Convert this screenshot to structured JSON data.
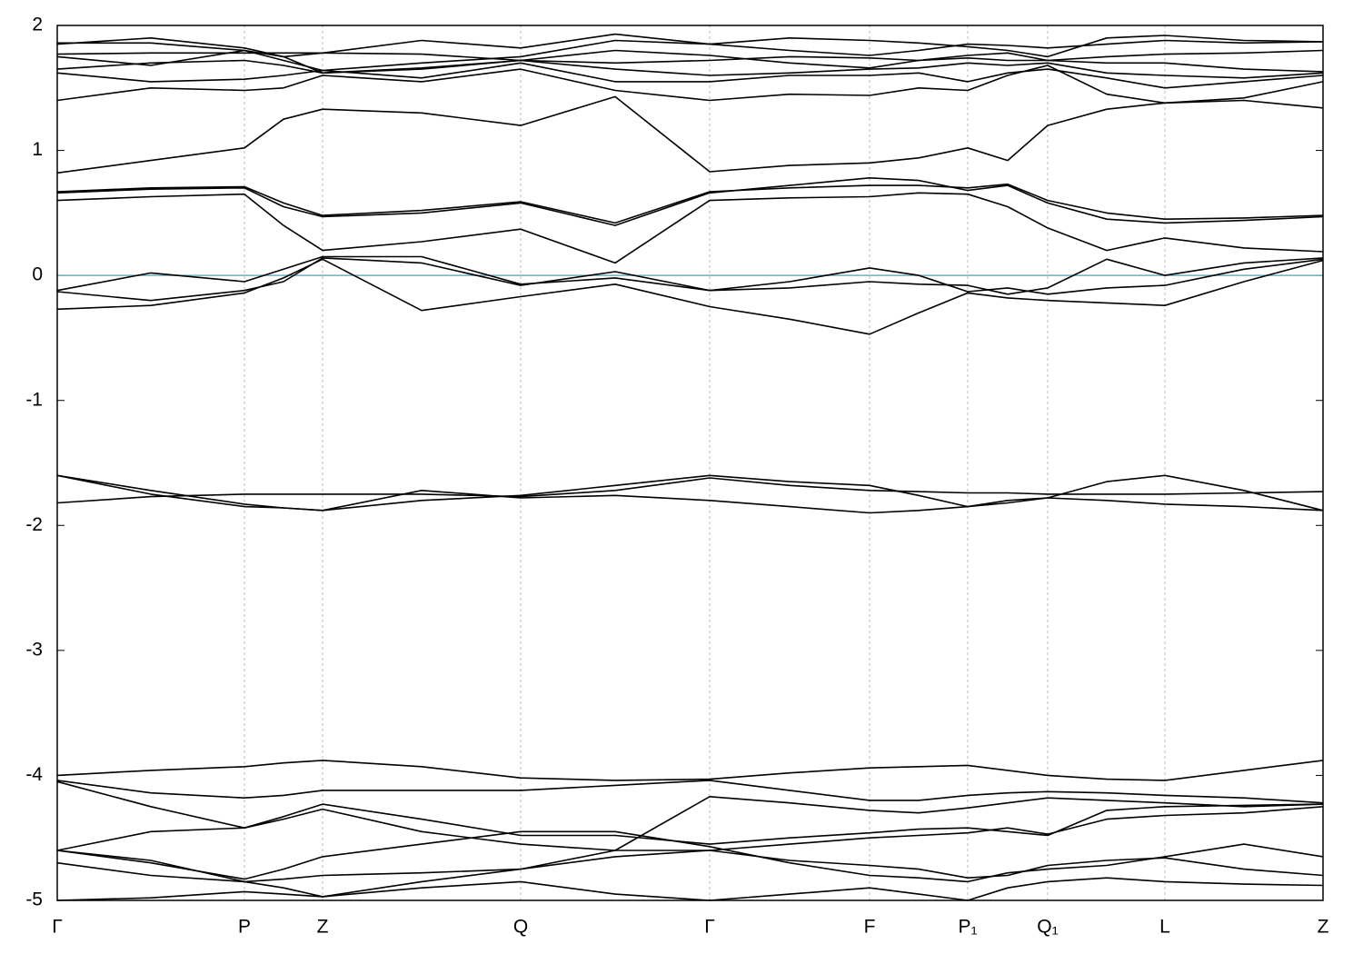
{
  "chart_data": {
    "type": "line",
    "xlim": [
      0,
      1393
    ],
    "ylim": [
      -5,
      2
    ],
    "yticks": [
      2,
      1,
      0,
      -1,
      -2,
      -3,
      -4,
      -5
    ],
    "xticks": [
      {
        "value": 0,
        "label": "Γ"
      },
      {
        "value": 206,
        "label": "P"
      },
      {
        "value": 292,
        "label": "Z"
      },
      {
        "value": 510,
        "label": "Q"
      },
      {
        "value": 718,
        "label": "Γ"
      },
      {
        "value": 894,
        "label": "F"
      },
      {
        "value": 1002,
        "label": "P₁"
      },
      {
        "value": 1090,
        "label": "Q₁"
      },
      {
        "value": 1219,
        "label": "L"
      },
      {
        "value": 1393,
        "label": "Z"
      }
    ],
    "xgrid": true,
    "grid_color": "#bbbbbb",
    "reference_line": {
      "value": 0,
      "color": "#5fb4c8"
    },
    "x": [
      0,
      103,
      206,
      249,
      292,
      401,
      510,
      614,
      718,
      806,
      894,
      948,
      1002,
      1046,
      1090,
      1155,
      1219,
      1306,
      1393
    ],
    "series": [
      {
        "color": "#000000",
        "values": [
          -4.0,
          -3.96,
          -3.93,
          -3.9,
          -3.88,
          -3.93,
          -4.02,
          -4.04,
          -4.03,
          -3.98,
          -3.94,
          -3.93,
          -3.92,
          -3.96,
          -4.0,
          -4.03,
          -4.04,
          -3.96,
          -3.88
        ]
      },
      {
        "color": "#000000",
        "values": [
          -4.04,
          -4.14,
          -4.18,
          -4.16,
          -4.12,
          -4.12,
          -4.12,
          -4.08,
          -4.04,
          -4.12,
          -4.2,
          -4.2,
          -4.16,
          -4.14,
          -4.13,
          -4.14,
          -4.16,
          -4.18,
          -4.22
        ]
      },
      {
        "color": "#000000",
        "values": [
          -4.05,
          -4.25,
          -4.42,
          -4.33,
          -4.23,
          -4.35,
          -4.48,
          -4.48,
          -4.55,
          -4.5,
          -4.46,
          -4.43,
          -4.42,
          -4.45,
          -4.48,
          -4.28,
          -4.25,
          -4.24,
          -4.23
        ]
      },
      {
        "color": "#000000",
        "values": [
          -4.6,
          -4.45,
          -4.42,
          -4.35,
          -4.27,
          -4.45,
          -4.55,
          -4.6,
          -4.6,
          -4.55,
          -4.5,
          -4.48,
          -4.46,
          -4.42,
          -4.47,
          -4.35,
          -4.32,
          -4.3,
          -4.25
        ]
      },
      {
        "color": "#000000",
        "values": [
          -4.6,
          -4.7,
          -4.83,
          -4.75,
          -4.65,
          -4.55,
          -4.45,
          -4.45,
          -4.57,
          -4.7,
          -4.8,
          -4.82,
          -4.85,
          -4.78,
          -4.75,
          -4.72,
          -4.65,
          -4.55,
          -4.65
        ]
      },
      {
        "color": "#000000",
        "values": [
          -4.7,
          -4.8,
          -4.85,
          -4.83,
          -4.8,
          -4.78,
          -4.75,
          -4.65,
          -4.6,
          -4.68,
          -4.72,
          -4.75,
          -4.82,
          -4.8,
          -4.72,
          -4.68,
          -4.66,
          -4.75,
          -4.8
        ]
      },
      {
        "color": "#000000",
        "values": [
          -5.0,
          -4.98,
          -4.93,
          -4.95,
          -4.97,
          -4.9,
          -4.85,
          -4.95,
          -5.0,
          -4.95,
          -4.9,
          -4.95,
          -5.0,
          -4.9,
          -4.85,
          -4.82,
          -4.85,
          -4.87,
          -4.88
        ]
      },
      {
        "color": "#000000",
        "values": [
          -4.6,
          -4.68,
          -4.85,
          -4.9,
          -4.97,
          -4.85,
          -4.75,
          -4.6,
          -4.17,
          -4.22,
          -4.28,
          -4.3,
          -4.26,
          -4.22,
          -4.18,
          -4.2,
          -4.22,
          -4.25,
          -4.23
        ]
      },
      {
        "color": "#000000",
        "values": [
          -1.6,
          -1.72,
          -1.83,
          -1.86,
          -1.88,
          -1.8,
          -1.76,
          -1.68,
          -1.6,
          -1.65,
          -1.68,
          -1.76,
          -1.85,
          -1.82,
          -1.78,
          -1.65,
          -1.6,
          -1.72,
          -1.88
        ]
      },
      {
        "color": "#000000",
        "values": [
          -1.6,
          -1.75,
          -1.85,
          -1.86,
          -1.88,
          -1.72,
          -1.78,
          -1.76,
          -1.8,
          -1.85,
          -1.9,
          -1.88,
          -1.85,
          -1.8,
          -1.78,
          -1.8,
          -1.83,
          -1.85,
          -1.88
        ]
      },
      {
        "color": "#000000",
        "values": [
          -1.82,
          -1.77,
          -1.75,
          -1.75,
          -1.75,
          -1.75,
          -1.77,
          -1.72,
          -1.62,
          -1.68,
          -1.72,
          -1.73,
          -1.74,
          -1.74,
          -1.75,
          -1.75,
          -1.75,
          -1.74,
          -1.73
        ]
      },
      {
        "color": "#000000",
        "values": [
          -0.27,
          -0.24,
          -0.14,
          -0.02,
          0.13,
          -0.28,
          -0.17,
          -0.07,
          -0.25,
          -0.35,
          -0.47,
          -0.3,
          -0.14,
          -0.18,
          -0.2,
          -0.22,
          -0.24,
          -0.05,
          0.12
        ]
      },
      {
        "color": "#000000",
        "values": [
          -0.13,
          -0.2,
          -0.12,
          -0.05,
          0.14,
          0.1,
          -0.08,
          0.03,
          -0.12,
          -0.05,
          0.06,
          0.0,
          -0.13,
          -0.1,
          -0.15,
          -0.1,
          -0.08,
          0.05,
          0.13
        ]
      },
      {
        "color": "#000000",
        "values": [
          -0.12,
          0.02,
          -0.05,
          0.05,
          0.15,
          0.15,
          -0.07,
          -0.02,
          -0.12,
          -0.1,
          -0.05,
          -0.07,
          -0.08,
          -0.15,
          -0.1,
          0.13,
          0.0,
          0.1,
          0.14
        ]
      },
      {
        "color": "#000000",
        "values": [
          0.6,
          0.63,
          0.65,
          0.4,
          0.2,
          0.27,
          0.37,
          0.1,
          0.6,
          0.62,
          0.63,
          0.66,
          0.65,
          0.55,
          0.38,
          0.2,
          0.3,
          0.22,
          0.19
        ]
      },
      {
        "color": "#000000",
        "values": [
          0.66,
          0.69,
          0.7,
          0.55,
          0.47,
          0.5,
          0.58,
          0.4,
          0.66,
          0.72,
          0.78,
          0.76,
          0.68,
          0.72,
          0.58,
          0.45,
          0.42,
          0.44,
          0.47
        ]
      },
      {
        "color": "#000000",
        "values": [
          0.67,
          0.7,
          0.71,
          0.58,
          0.48,
          0.52,
          0.59,
          0.42,
          0.67,
          0.7,
          0.72,
          0.72,
          0.7,
          0.73,
          0.6,
          0.5,
          0.45,
          0.46,
          0.48
        ]
      },
      {
        "color": "#000000",
        "values": [
          0.82,
          0.92,
          1.02,
          1.25,
          1.33,
          1.3,
          1.2,
          1.43,
          0.83,
          0.88,
          0.9,
          0.94,
          1.02,
          0.92,
          1.2,
          1.33,
          1.38,
          1.4,
          1.34
        ]
      },
      {
        "color": "#000000",
        "values": [
          1.4,
          1.5,
          1.48,
          1.5,
          1.6,
          1.55,
          1.65,
          1.48,
          1.4,
          1.45,
          1.44,
          1.5,
          1.48,
          1.6,
          1.68,
          1.45,
          1.38,
          1.42,
          1.55
        ]
      },
      {
        "color": "#000000",
        "values": [
          1.62,
          1.55,
          1.57,
          1.6,
          1.64,
          1.58,
          1.7,
          1.55,
          1.55,
          1.6,
          1.6,
          1.62,
          1.55,
          1.62,
          1.65,
          1.58,
          1.5,
          1.55,
          1.6
        ]
      },
      {
        "color": "#000000",
        "values": [
          1.65,
          1.7,
          1.72,
          1.68,
          1.62,
          1.65,
          1.72,
          1.65,
          1.6,
          1.62,
          1.65,
          1.66,
          1.7,
          1.68,
          1.7,
          1.62,
          1.6,
          1.58,
          1.62
        ]
      },
      {
        "color": "#000000",
        "values": [
          1.75,
          1.68,
          1.8,
          1.75,
          1.62,
          1.66,
          1.72,
          1.7,
          1.72,
          1.75,
          1.74,
          1.72,
          1.74,
          1.72,
          1.72,
          1.7,
          1.7,
          1.65,
          1.63
        ]
      },
      {
        "color": "#000000",
        "values": [
          1.77,
          1.78,
          1.78,
          1.78,
          1.78,
          1.77,
          1.72,
          1.8,
          1.76,
          1.7,
          1.66,
          1.72,
          1.76,
          1.78,
          1.72,
          1.75,
          1.77,
          1.78,
          1.8
        ]
      },
      {
        "color": "#000000",
        "values": [
          1.85,
          1.9,
          1.82,
          1.75,
          1.78,
          1.88,
          1.82,
          1.93,
          1.85,
          1.9,
          1.88,
          1.86,
          1.83,
          1.8,
          1.75,
          1.9,
          1.92,
          1.88,
          1.87
        ]
      },
      {
        "color": "#000000",
        "values": [
          1.86,
          1.86,
          1.8,
          1.72,
          1.64,
          1.7,
          1.75,
          1.88,
          1.85,
          1.8,
          1.76,
          1.8,
          1.85,
          1.84,
          1.82,
          1.85,
          1.88,
          1.86,
          1.87
        ]
      }
    ]
  }
}
